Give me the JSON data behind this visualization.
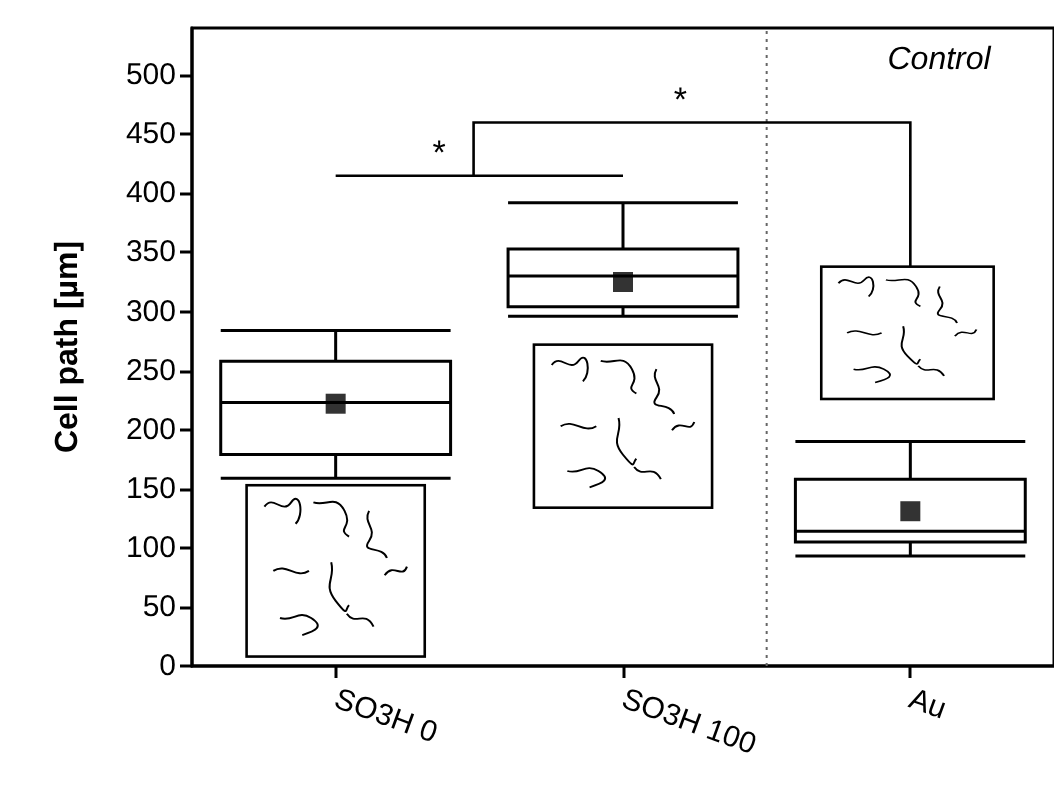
{
  "chart_data": {
    "type": "box",
    "ylabel": "Cell path [µm]",
    "categories": [
      "SO3H 0",
      "SO3H 100",
      "Au"
    ],
    "boxes": [
      {
        "low": 159,
        "q1": 179,
        "median": 223,
        "q3": 258,
        "high": 284,
        "mean": 222
      },
      {
        "low": 296,
        "q1": 304,
        "median": 330,
        "q3": 353,
        "high": 392,
        "mean": 325
      },
      {
        "low": 93,
        "q1": 105,
        "median": 114,
        "q3": 158,
        "high": 190,
        "mean": 131
      }
    ],
    "ylim": [
      0,
      540
    ],
    "yticks": [
      0,
      50,
      100,
      150,
      200,
      250,
      300,
      350,
      400,
      450,
      500
    ],
    "annotations": [
      "*",
      "*",
      "Control"
    ],
    "grid": false,
    "marker": "square"
  }
}
